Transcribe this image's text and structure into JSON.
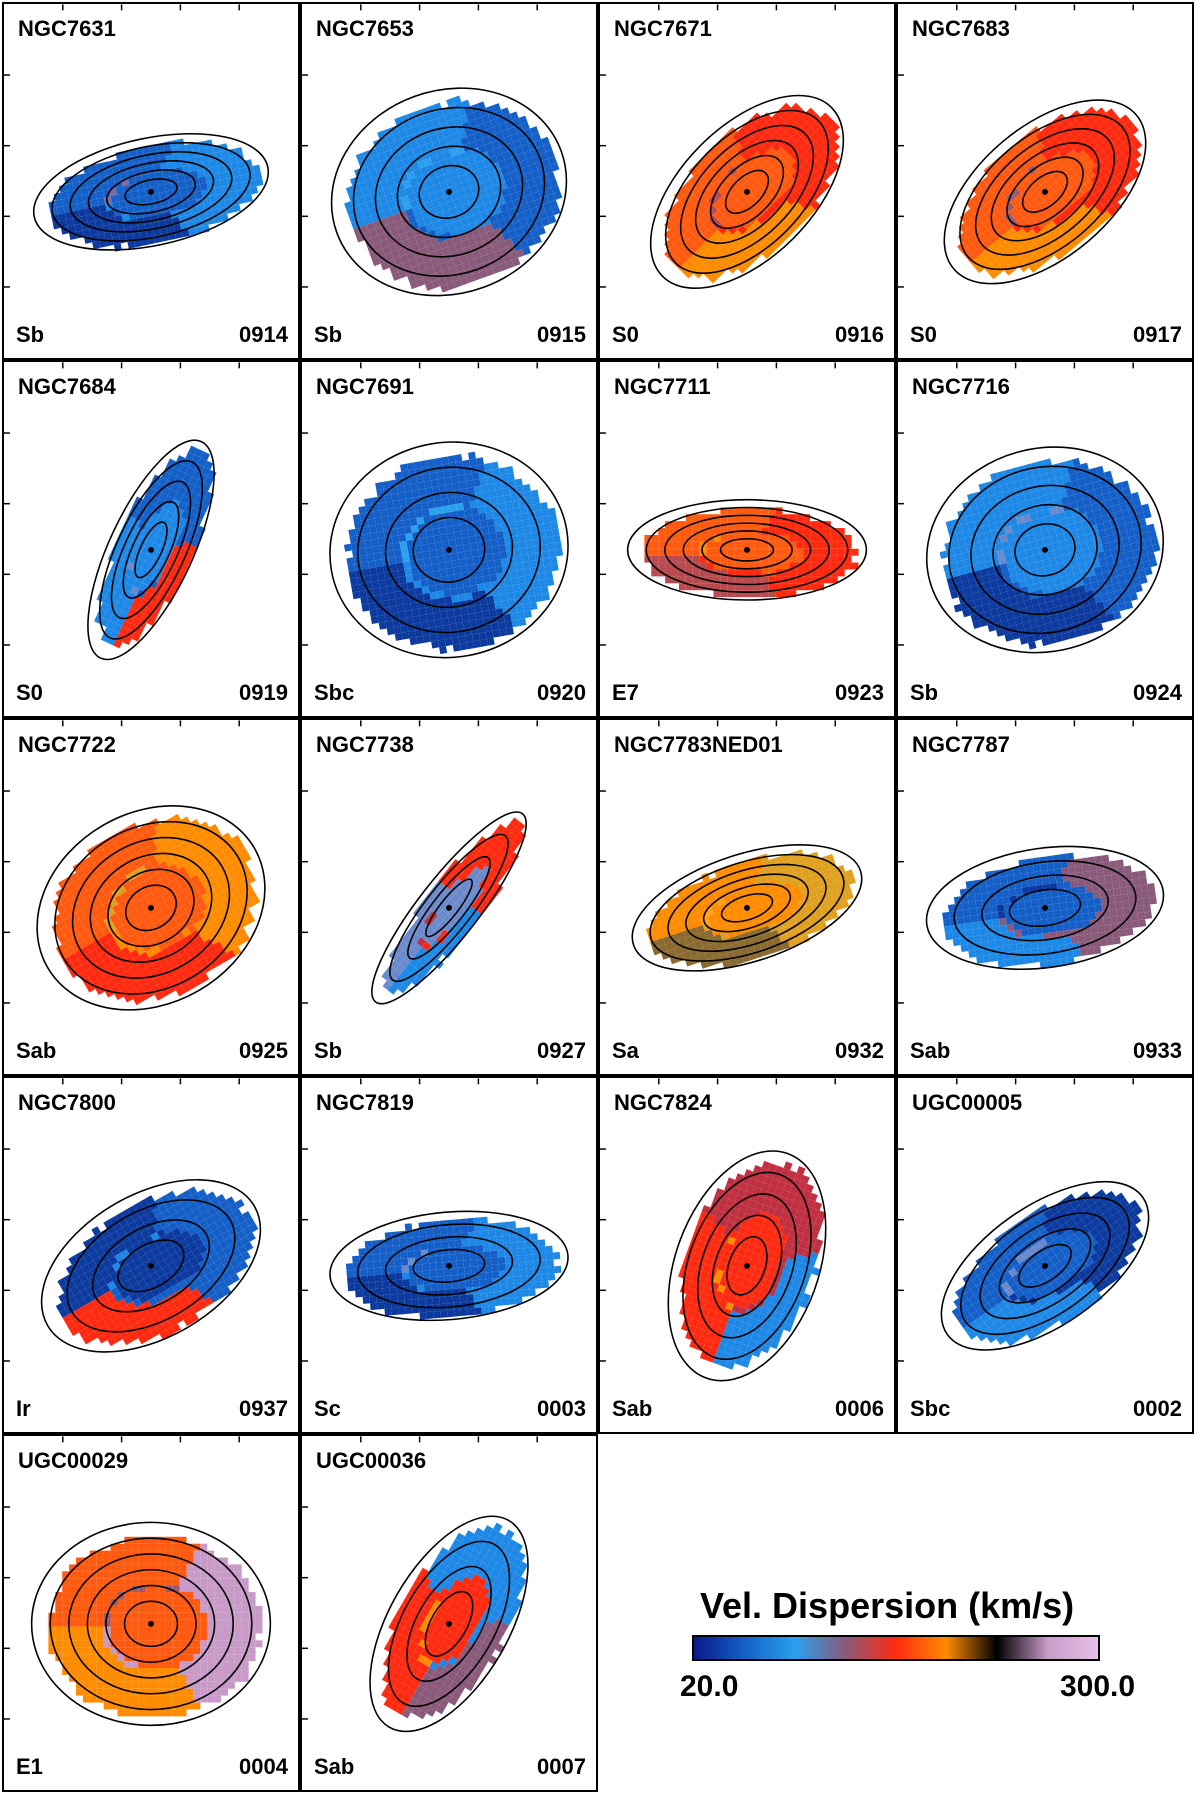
{
  "panels": [
    {
      "name": "NGC7631",
      "type": "Sb",
      "id": "0914",
      "palette": [
        "#1560c8",
        "#1e88e6",
        "#0c3a9e",
        "#7a6aa8"
      ],
      "contours": 6,
      "tilt": -12,
      "elong": 0.45
    },
    {
      "name": "NGC7653",
      "type": "Sb",
      "id": "0915",
      "palette": [
        "#1e88e6",
        "#1560c8",
        "#8a5a7a",
        "#2aa0ee"
      ],
      "contours": 5,
      "tilt": -20,
      "elong": 0.85
    },
    {
      "name": "NGC7671",
      "type": "S0",
      "id": "0916",
      "palette": [
        "#ff5a10",
        "#ff2a10",
        "#ff8c00",
        "#b84a50"
      ],
      "contours": 6,
      "tilt": -45,
      "elong": 0.55
    },
    {
      "name": "NGC7683",
      "type": "S0",
      "id": "0917",
      "palette": [
        "#ff5a10",
        "#ff2a10",
        "#ff8c00",
        "#9a5a6a"
      ],
      "contours": 6,
      "tilt": -40,
      "elong": 0.55
    },
    {
      "name": "NGC7684",
      "type": "S0",
      "id": "0919",
      "palette": [
        "#1e88e6",
        "#1560c8",
        "#ff2a10",
        "#6a8acc"
      ],
      "contours": 5,
      "tilt": -65,
      "elong": 0.35
    },
    {
      "name": "NGC7691",
      "type": "Sbc",
      "id": "0920",
      "palette": [
        "#1560c8",
        "#1e88e6",
        "#0c3a9e",
        "#2aa0ee"
      ],
      "contours": 4,
      "tilt": -10,
      "elong": 0.9
    },
    {
      "name": "NGC7711",
      "type": "E7",
      "id": "0923",
      "palette": [
        "#ff5a10",
        "#ff2a10",
        "#b84a50",
        "#ff8c00"
      ],
      "contours": 6,
      "tilt": 0,
      "elong": 0.42
    },
    {
      "name": "NGC7716",
      "type": "Sb",
      "id": "0924",
      "palette": [
        "#1e88e6",
        "#1560c8",
        "#0c3a9e",
        "#6a8acc"
      ],
      "contours": 5,
      "tilt": -15,
      "elong": 0.85
    },
    {
      "name": "NGC7722",
      "type": "Sab",
      "id": "0925",
      "palette": [
        "#ff5a10",
        "#ff8c00",
        "#ff2a10",
        "#e0a020"
      ],
      "contours": 6,
      "tilt": -30,
      "elong": 0.8
    },
    {
      "name": "NGC7738",
      "type": "Sb",
      "id": "0927",
      "palette": [
        "#6a8acc",
        "#ff2a10",
        "#1e88e6",
        "#c03040"
      ],
      "contours": 4,
      "tilt": -52,
      "elong": 0.25
    },
    {
      "name": "NGC7783NED01",
      "type": "Sa",
      "id": "0932",
      "palette": [
        "#ff8c00",
        "#e0a020",
        "#8a6a30",
        "#ffa020"
      ],
      "contours": 6,
      "tilt": -18,
      "elong": 0.45
    },
    {
      "name": "NGC7787",
      "type": "Sab",
      "id": "0933",
      "palette": [
        "#1560c8",
        "#8a5a7a",
        "#1e88e6",
        "#0c3a9e"
      ],
      "contours": 4,
      "tilt": -8,
      "elong": 0.5
    },
    {
      "name": "NGC7800",
      "type": "Ir",
      "id": "0937",
      "palette": [
        "#0c3a9e",
        "#1560c8",
        "#ff2a10",
        "#1e88e6"
      ],
      "contours": 4,
      "tilt": -30,
      "elong": 0.6
    },
    {
      "name": "NGC7819",
      "type": "Sc",
      "id": "0003",
      "palette": [
        "#1560c8",
        "#1e88e6",
        "#0c3a9e",
        "#6a8acc"
      ],
      "contours": 4,
      "tilt": -5,
      "elong": 0.45
    },
    {
      "name": "NGC7824",
      "type": "Sab",
      "id": "0006",
      "palette": [
        "#ff2a10",
        "#c03040",
        "#1e88e6",
        "#ff8c00"
      ],
      "contours": 5,
      "tilt": -70,
      "elong": 0.6
    },
    {
      "name": "UGC00005",
      "type": "Sbc",
      "id": "0002",
      "palette": [
        "#1560c8",
        "#0c3a9e",
        "#1e88e6",
        "#6a8acc"
      ],
      "contours": 5,
      "tilt": -35,
      "elong": 0.5
    },
    {
      "name": "UGC00029",
      "type": "E1",
      "id": "0004",
      "palette": [
        "#ff5a10",
        "#c89ac8",
        "#ff8c00",
        "#9a5a6a"
      ],
      "contours": 6,
      "tilt": 0,
      "elong": 0.85
    },
    {
      "name": "UGC00036",
      "type": "Sab",
      "id": "0007",
      "palette": [
        "#ff2a10",
        "#1e88e6",
        "#8a5a7a",
        "#ff8c00"
      ],
      "contours": 4,
      "tilt": -60,
      "elong": 0.5
    }
  ],
  "legend": {
    "title": "Vel. Dispersion (km/s)",
    "min": "20.0",
    "max": "300.0",
    "colors": [
      "#0a1a8a",
      "#1560c8",
      "#2aa0ee",
      "#8a5a7a",
      "#ff2a10",
      "#ff8c00",
      "#000000",
      "#c89ac8",
      "#e8c0e8"
    ]
  }
}
